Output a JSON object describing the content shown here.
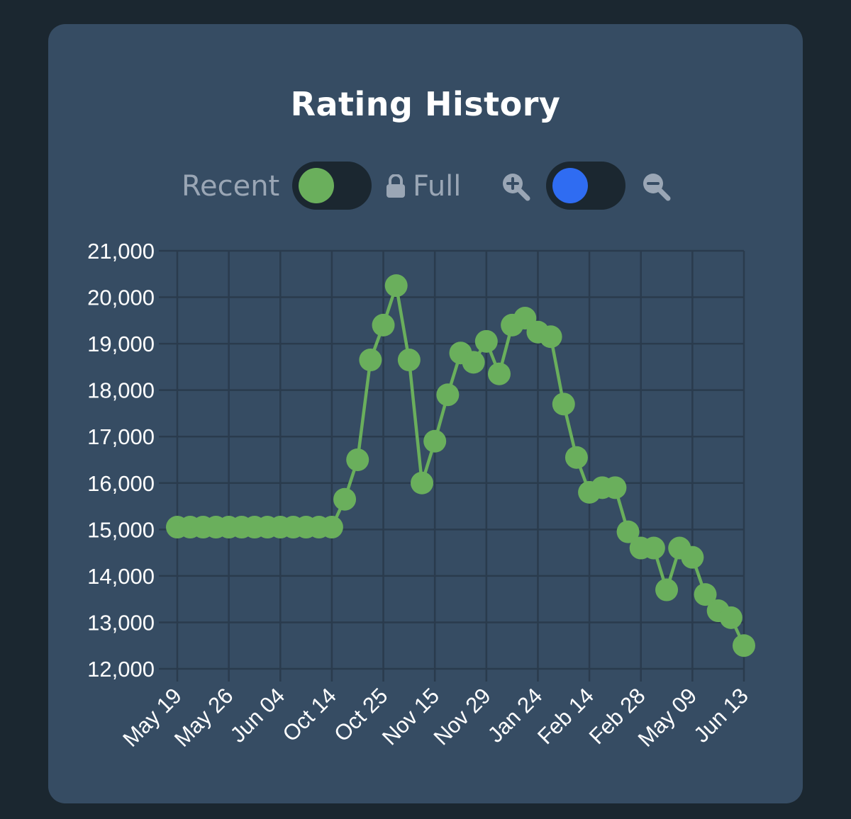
{
  "title": "Rating History",
  "controls": {
    "recent_label": "Recent",
    "full_label": "Full",
    "recent_toggle_color": "#6aaf5c",
    "zoom_toggle_color": "#2f6cf2",
    "icons": [
      "lock-icon",
      "zoom-in-icon",
      "zoom-out-icon"
    ]
  },
  "colors": {
    "background": "#1b2730",
    "card": "#364c63",
    "series": "#6aaf5c",
    "grid": "#2a3b4d",
    "text": "#ffffff"
  },
  "chart_data": {
    "type": "line",
    "title": "Rating History",
    "xlabel": "",
    "ylabel": "",
    "ylim": [
      12000,
      21000
    ],
    "yticks": [
      12000,
      13000,
      14000,
      15000,
      16000,
      17000,
      18000,
      19000,
      20000,
      21000
    ],
    "xticks": [
      "May 19",
      "May 26",
      "Jun 04",
      "Oct 14",
      "Oct 25",
      "Nov 15",
      "Nov 29",
      "Jan 24",
      "Feb 14",
      "Feb 28",
      "May 09",
      "Jun 13"
    ],
    "grid": true,
    "legend": "none",
    "series": [
      {
        "values": [
          15050,
          15050,
          15050,
          15050,
          15050,
          15050,
          15050,
          15050,
          15050,
          15050,
          15050,
          15050,
          15050,
          15650,
          16500,
          18650,
          19400,
          20250,
          18650,
          16000,
          16900,
          17900,
          18800,
          18600,
          19050,
          18350,
          19400,
          19550,
          19250,
          19150,
          17700,
          16550,
          15800,
          15900,
          15900,
          14950,
          14600,
          14600,
          13700,
          14600,
          14400,
          13600,
          13250,
          13100,
          12500
        ]
      }
    ]
  }
}
